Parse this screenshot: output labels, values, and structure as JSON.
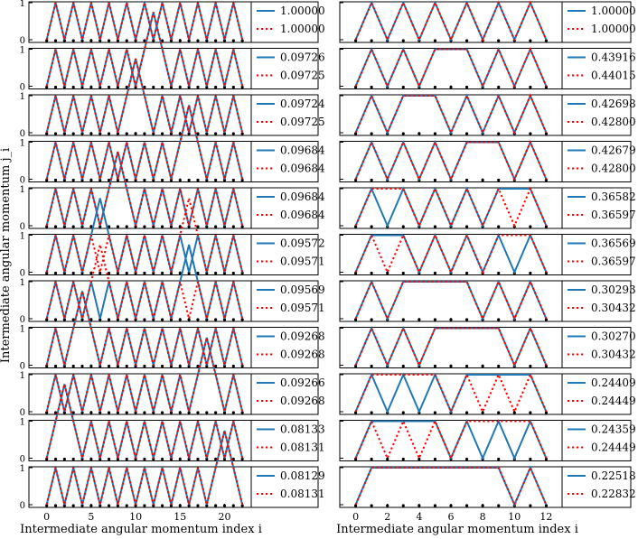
{
  "figure": {
    "ylabel": "Intermediate angular momentum j_i",
    "left_xlabel": "Intermediate angular momentum index i",
    "right_xlabel": "Intermediate angular momentum index i"
  },
  "colors": {
    "solid": "#1f77b4",
    "dotted": "#ff0000"
  },
  "chart_data": [
    {
      "type": "line",
      "panel_group": "left",
      "xlim": [
        -2,
        23
      ],
      "ylim": [
        0,
        1
      ],
      "xticks": [
        0,
        5,
        10,
        15,
        20
      ],
      "yticks": [
        0,
        1
      ],
      "line_styles": {
        "solid": "solid",
        "dotted": "dotted"
      },
      "series": [
        {
          "id": "L0",
          "solid": {
            "legend": "1.00000",
            "y": [
              0,
              1,
              0,
              1,
              0,
              1,
              0,
              1,
              0,
              1,
              0,
              1,
              0,
              1,
              0,
              1,
              0,
              1,
              0,
              1,
              0,
              1,
              0
            ]
          },
          "dotted": {
            "legend": "1.00000",
            "y": [
              0,
              1,
              0,
              1,
              0,
              1,
              0,
              1,
              0,
              1,
              0,
              1,
              0,
              1,
              0,
              1,
              0,
              1,
              0,
              1,
              0,
              1,
              0
            ]
          }
        },
        {
          "id": "L1",
          "solid": {
            "legend": "0.09726",
            "y": [
              0,
              1,
              0,
              1,
              0,
              1,
              0,
              1,
              0,
              1,
              0,
              1,
              2,
              1,
              0,
              1,
              0,
              1,
              0,
              1,
              0,
              1,
              0
            ]
          },
          "dotted": {
            "legend": "0.09725",
            "y": [
              0,
              1,
              0,
              1,
              0,
              1,
              0,
              1,
              0,
              1,
              0,
              1,
              2,
              1,
              0,
              1,
              0,
              1,
              0,
              1,
              0,
              1,
              0
            ]
          }
        },
        {
          "id": "L2",
          "solid": {
            "legend": "0.09724",
            "y": [
              0,
              1,
              0,
              1,
              0,
              1,
              0,
              1,
              0,
              1,
              2,
              1,
              0,
              1,
              0,
              1,
              0,
              1,
              0,
              1,
              0,
              1,
              0
            ]
          },
          "dotted": {
            "legend": "0.09725",
            "y": [
              0,
              1,
              0,
              1,
              0,
              1,
              0,
              1,
              0,
              1,
              2,
              1,
              0,
              1,
              0,
              1,
              0,
              1,
              0,
              1,
              0,
              1,
              0
            ]
          }
        },
        {
          "id": "L3",
          "solid": {
            "legend": "0.09684",
            "y": [
              0,
              1,
              0,
              1,
              0,
              1,
              0,
              1,
              0,
              1,
              0,
              1,
              0,
              1,
              0,
              1,
              2,
              1,
              0,
              1,
              0,
              1,
              0
            ]
          },
          "dotted": {
            "legend": "0.09684",
            "y": [
              0,
              1,
              0,
              1,
              0,
              1,
              0,
              1,
              0,
              1,
              0,
              1,
              0,
              1,
              0,
              1,
              2,
              1,
              0,
              1,
              0,
              1,
              0
            ]
          }
        },
        {
          "id": "L4",
          "solid": {
            "legend": "0.09684",
            "y": [
              0,
              1,
              0,
              1,
              0,
              1,
              0,
              1,
              2,
              1,
              0,
              1,
              0,
              1,
              0,
              1,
              0,
              1,
              0,
              1,
              0,
              1,
              0
            ]
          },
          "dotted": {
            "legend": "0.09684",
            "y": [
              0,
              1,
              0,
              1,
              0,
              1,
              0,
              1,
              2,
              1,
              0,
              1,
              0,
              1,
              0,
              1,
              0,
              1,
              0,
              1,
              0,
              1,
              0
            ]
          }
        },
        {
          "id": "L5",
          "solid": {
            "legend": "0.09572",
            "y": [
              0,
              1,
              0,
              1,
              0,
              1,
              2,
              1,
              0,
              1,
              0,
              1,
              0,
              1,
              0,
              1,
              0,
              1,
              0,
              1,
              0,
              1,
              0
            ]
          },
          "dotted": {
            "legend": "0.09571",
            "y": [
              0,
              1,
              0,
              1,
              0,
              1,
              0,
              1,
              0,
              1,
              0,
              1,
              0,
              1,
              0,
              1,
              2,
              1,
              0,
              1,
              0,
              1,
              0
            ]
          }
        },
        {
          "id": "L6",
          "solid": {
            "legend": "0.09569",
            "y": [
              0,
              1,
              0,
              1,
              0,
              1,
              0,
              1,
              0,
              1,
              0,
              1,
              0,
              1,
              0,
              1,
              2,
              1,
              0,
              1,
              0,
              1,
              0
            ]
          },
          "dotted": {
            "legend": "0.09571",
            "y": [
              0,
              1,
              0,
              1,
              0,
              1,
              2,
              1,
              0,
              1,
              0,
              1,
              0,
              1,
              0,
              1,
              0,
              1,
              0,
              1,
              0,
              1,
              0
            ]
          }
        },
        {
          "id": "L7",
          "solid": {
            "legend": "0.09268",
            "y": [
              0,
              1,
              0,
              1,
              2,
              1,
              0,
              1,
              0,
              1,
              0,
              1,
              0,
              1,
              0,
              1,
              0,
              1,
              0,
              1,
              0,
              1,
              0
            ]
          },
          "dotted": {
            "legend": "0.09268",
            "y": [
              0,
              1,
              0,
              1,
              2,
              1,
              0,
              1,
              0,
              1,
              0,
              1,
              0,
              1,
              0,
              1,
              0,
              1,
              0,
              1,
              0,
              1,
              0
            ]
          }
        },
        {
          "id": "L8",
          "solid": {
            "legend": "0.09266",
            "y": [
              0,
              1,
              0,
              1,
              0,
              1,
              0,
              1,
              0,
              1,
              0,
              1,
              0,
              1,
              0,
              1,
              0,
              1,
              2,
              1,
              0,
              1,
              0
            ]
          },
          "dotted": {
            "legend": "0.09268",
            "y": [
              0,
              1,
              0,
              1,
              0,
              1,
              0,
              1,
              0,
              1,
              0,
              1,
              0,
              1,
              0,
              1,
              0,
              1,
              2,
              1,
              0,
              1,
              0
            ]
          }
        },
        {
          "id": "L9",
          "solid": {
            "legend": "0.08133",
            "y": [
              0,
              1,
              2,
              1,
              0,
              1,
              0,
              1,
              0,
              1,
              0,
              1,
              0,
              1,
              0,
              1,
              0,
              1,
              0,
              1,
              0,
              1,
              0
            ]
          },
          "dotted": {
            "legend": "0.08131",
            "y": [
              0,
              1,
              2,
              1,
              0,
              1,
              0,
              1,
              0,
              1,
              0,
              1,
              0,
              1,
              0,
              1,
              0,
              1,
              0,
              1,
              0,
              1,
              0
            ]
          }
        },
        {
          "id": "L10",
          "solid": {
            "legend": "0.08129",
            "y": [
              0,
              1,
              0,
              1,
              0,
              1,
              0,
              1,
              0,
              1,
              0,
              1,
              0,
              1,
              0,
              1,
              0,
              1,
              0,
              1,
              2,
              1,
              0
            ]
          },
          "dotted": {
            "legend": "0.08131",
            "y": [
              0,
              1,
              0,
              1,
              0,
              1,
              0,
              1,
              0,
              1,
              0,
              1,
              0,
              1,
              0,
              1,
              0,
              1,
              0,
              1,
              2,
              1,
              0
            ]
          }
        }
      ]
    },
    {
      "type": "line",
      "panel_group": "right",
      "xlim": [
        -1,
        13
      ],
      "ylim": [
        0,
        1
      ],
      "xticks": [
        0,
        2,
        4,
        6,
        8,
        10,
        12
      ],
      "yticks": [
        0,
        1
      ],
      "line_styles": {
        "solid": "solid",
        "dotted": "dotted"
      },
      "series": [
        {
          "id": "R0",
          "solid": {
            "legend": "1.00000",
            "y": [
              0,
              1,
              0,
              1,
              0,
              1,
              0,
              1,
              0,
              1,
              0,
              1,
              0
            ]
          },
          "dotted": {
            "legend": "1.00000",
            "y": [
              0,
              1,
              0,
              1,
              0,
              1,
              0,
              1,
              0,
              1,
              0,
              1,
              0
            ]
          }
        },
        {
          "id": "R1",
          "solid": {
            "legend": "0.43916",
            "y": [
              0,
              1,
              0,
              1,
              0,
              1,
              1,
              1,
              0,
              1,
              0,
              1,
              0
            ]
          },
          "dotted": {
            "legend": "0.44015",
            "y": [
              0,
              1,
              0,
              1,
              0,
              1,
              1,
              1,
              0,
              1,
              0,
              1,
              0
            ]
          }
        },
        {
          "id": "R2",
          "solid": {
            "legend": "0.42698",
            "y": [
              0,
              1,
              0,
              1,
              1,
              1,
              0,
              1,
              0,
              1,
              0,
              1,
              0
            ]
          },
          "dotted": {
            "legend": "0.42800",
            "y": [
              0,
              1,
              0,
              1,
              1,
              1,
              0,
              1,
              0,
              1,
              0,
              1,
              0
            ]
          }
        },
        {
          "id": "R3",
          "solid": {
            "legend": "0.42679",
            "y": [
              0,
              1,
              0,
              1,
              0,
              1,
              0,
              1,
              1,
              1,
              0,
              1,
              0
            ]
          },
          "dotted": {
            "legend": "0.42800",
            "y": [
              0,
              1,
              0,
              1,
              0,
              1,
              0,
              1,
              1,
              1,
              0,
              1,
              0
            ]
          }
        },
        {
          "id": "R4",
          "solid": {
            "legend": "0.36582",
            "y": [
              0,
              1,
              0,
              1,
              0,
              1,
              0,
              1,
              0,
              1,
              1,
              1,
              0
            ]
          },
          "dotted": {
            "legend": "0.36597",
            "y": [
              0,
              1,
              1,
              1,
              0,
              1,
              0,
              1,
              0,
              1,
              0,
              1,
              0
            ]
          }
        },
        {
          "id": "R5",
          "solid": {
            "legend": "0.36569",
            "y": [
              0,
              1,
              1,
              1,
              0,
              1,
              0,
              1,
              0,
              1,
              0,
              1,
              0
            ]
          },
          "dotted": {
            "legend": "0.36597",
            "y": [
              0,
              1,
              0,
              1,
              0,
              1,
              0,
              1,
              0,
              1,
              1,
              1,
              0
            ]
          }
        },
        {
          "id": "R6",
          "solid": {
            "legend": "0.30293",
            "y": [
              0,
              1,
              0,
              1,
              1,
              1,
              1,
              1,
              0,
              1,
              0,
              1,
              0
            ]
          },
          "dotted": {
            "legend": "0.30432",
            "y": [
              0,
              1,
              0,
              1,
              1,
              1,
              1,
              1,
              0,
              1,
              0,
              1,
              0
            ]
          }
        },
        {
          "id": "R7",
          "solid": {
            "legend": "0.30270",
            "y": [
              0,
              1,
              0,
              1,
              0,
              1,
              1,
              1,
              1,
              1,
              0,
              1,
              0
            ]
          },
          "dotted": {
            "legend": "0.30432",
            "y": [
              0,
              1,
              0,
              1,
              0,
              1,
              1,
              1,
              1,
              1,
              0,
              1,
              0
            ]
          }
        },
        {
          "id": "R8",
          "solid": {
            "legend": "0.24409",
            "y": [
              0,
              1,
              0,
              1,
              0,
              1,
              0,
              1,
              1,
              1,
              1,
              1,
              0
            ]
          },
          "dotted": {
            "legend": "0.24449",
            "y": [
              0,
              1,
              1,
              1,
              1,
              1,
              0,
              1,
              0,
              1,
              0,
              1,
              0
            ]
          }
        },
        {
          "id": "R9",
          "solid": {
            "legend": "0.24359",
            "y": [
              0,
              1,
              1,
              1,
              1,
              1,
              0,
              1,
              0,
              1,
              0,
              1,
              0
            ]
          },
          "dotted": {
            "legend": "0.24449",
            "y": [
              0,
              1,
              0,
              1,
              0,
              1,
              0,
              1,
              1,
              1,
              1,
              1,
              0
            ]
          }
        },
        {
          "id": "R10",
          "solid": {
            "legend": "0.22518",
            "y": [
              0,
              1,
              1,
              1,
              1,
              1,
              1,
              1,
              1,
              1,
              0,
              1,
              0
            ]
          },
          "dotted": {
            "legend": "0.22832",
            "y": [
              0,
              1,
              1,
              1,
              1,
              1,
              1,
              1,
              1,
              1,
              0,
              1,
              0
            ]
          }
        }
      ]
    }
  ]
}
